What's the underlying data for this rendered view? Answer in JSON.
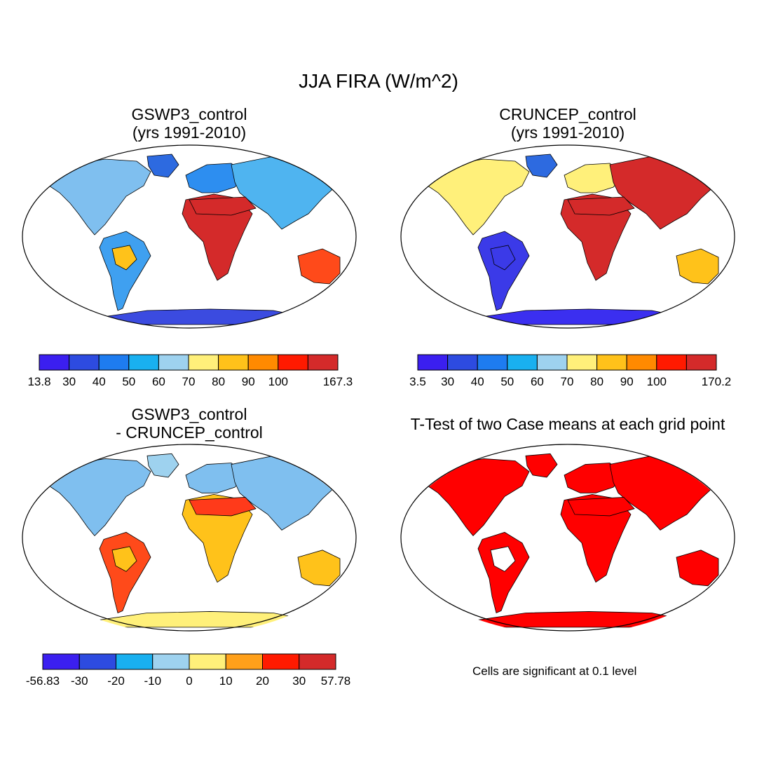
{
  "title": "JJA FIRA (W/m^2)",
  "panels": [
    {
      "id": "gswp3",
      "title_line1": "GSWP3_control",
      "title_line2": "(yrs 1991-2010)",
      "colorbar": {
        "colors": [
          "#3b1ff0",
          "#2d4be0",
          "#1e7cf0",
          "#19b0f0",
          "#9ed2ef",
          "#fff07a",
          "#ffc21a",
          "#ff8a00",
          "#ff1a00",
          "#d42a2a"
        ],
        "labels": [
          "13.8",
          "30",
          "40",
          "50",
          "60",
          "70",
          "80",
          "90",
          "100",
          "",
          "167.3"
        ]
      }
    },
    {
      "id": "cruncep",
      "title_line1": "CRUNCEP_control",
      "title_line2": "(yrs 1991-2010)",
      "colorbar": {
        "colors": [
          "#3b1ff0",
          "#2d4be0",
          "#1e7cf0",
          "#19b0f0",
          "#9ed2ef",
          "#fff07a",
          "#ffc21a",
          "#ff8a00",
          "#ff1a00",
          "#d42a2a"
        ],
        "labels": [
          "3.5",
          "30",
          "40",
          "50",
          "60",
          "70",
          "80",
          "90",
          "100",
          "",
          "170.2"
        ]
      }
    },
    {
      "id": "diff",
      "title_line1": "GSWP3_control",
      "title_line2": "- CRUNCEP_control",
      "colorbar": {
        "colors": [
          "#3b1ff0",
          "#2d4be0",
          "#19b0f0",
          "#9ed2ef",
          "#fff07a",
          "#ffa01a",
          "#ff1a00",
          "#d42a2a"
        ],
        "labels": [
          "-56.83",
          "-30",
          "-20",
          "-10",
          "0",
          "10",
          "20",
          "30",
          "57.78"
        ]
      }
    },
    {
      "id": "ttest",
      "title_line1": "T-Test of two Case means at each grid point",
      "title_line2": "",
      "note": "Cells are significant at 0.1 level"
    }
  ],
  "fills": {
    "gswp3": {
      "na": "#7fbfef",
      "sa": "#3fa0f0",
      "af": "#d42a2a",
      "eu": "#2d8ef0",
      "as": "#4fb4f0",
      "au": "#ff4a1a",
      "an": "#3b4be0",
      "gl": "#2d6ae0",
      "hi": "#d42a2a",
      "hi2": "#ffc21a"
    },
    "cruncep": {
      "na": "#fff07a",
      "sa": "#3b3ae8",
      "af": "#d42a2a",
      "eu": "#fff07a",
      "as": "#d42a2a",
      "au": "#ffc21a",
      "an": "#3b2ff0",
      "gl": "#2d6ae0",
      "hi": "#d42a2a",
      "hi2": "#3b3ae8"
    },
    "diff": {
      "na": "#7fbfef",
      "sa": "#ff4a1a",
      "af": "#ffc21a",
      "eu": "#7fbfef",
      "as": "#7fbfef",
      "au": "#ffc21a",
      "an": "#fff07a",
      "gl": "#9ed2ef",
      "hi": "#ff3a1a",
      "hi2": "#ffc21a"
    },
    "ttest": {
      "na": "#ff0000",
      "sa": "#ff0000",
      "af": "#ff0000",
      "eu": "#ff0000",
      "as": "#ff0000",
      "au": "#ff0000",
      "an": "#ff0000",
      "gl": "#ff0000",
      "hi": "#ff0000",
      "hi2": "#ffffff"
    }
  }
}
